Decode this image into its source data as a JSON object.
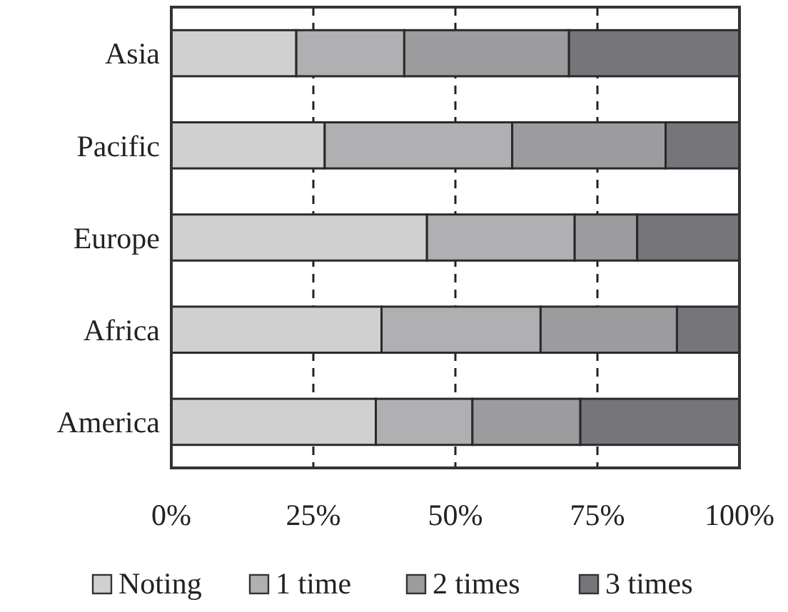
{
  "chart_data": {
    "type": "bar",
    "orientation": "horizontal",
    "stacked": true,
    "categories": [
      "Asia",
      "Pacific",
      "Europe",
      "Africa",
      "America"
    ],
    "series": [
      {
        "name": "Noting",
        "color": "#d0d0d0",
        "values": [
          22,
          27,
          45,
          37,
          36
        ]
      },
      {
        "name": "1 time",
        "color": "#b0b0b2",
        "values": [
          19,
          33,
          26,
          28,
          17
        ]
      },
      {
        "name": "2 times",
        "color": "#9c9c9e",
        "values": [
          29,
          27,
          11,
          24,
          19
        ]
      },
      {
        "name": "3 times",
        "color": "#76767a",
        "values": [
          30,
          13,
          18,
          11,
          28
        ]
      }
    ],
    "xlim": [
      0,
      100
    ],
    "xticks": [
      {
        "value": 0,
        "label": "0%"
      },
      {
        "value": 25,
        "label": "25%"
      },
      {
        "value": 50,
        "label": "50%"
      },
      {
        "value": 75,
        "label": "75%"
      },
      {
        "value": 100,
        "label": "100%"
      }
    ],
    "grid": "x",
    "legend": "bottom"
  }
}
